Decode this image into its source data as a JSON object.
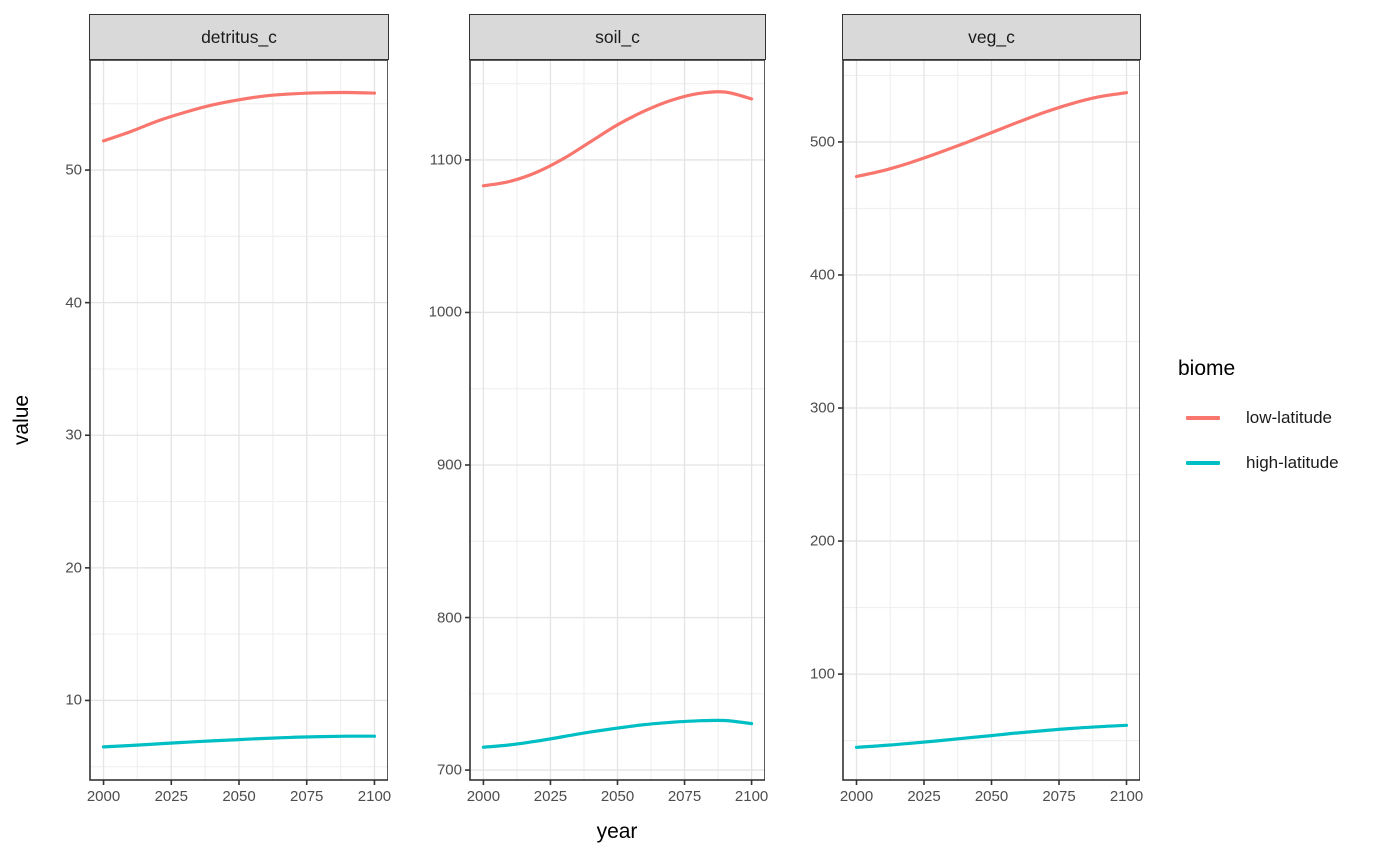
{
  "chart_data": {
    "type": "line",
    "xlabel": "year",
    "ylabel": "value",
    "x": [
      2000,
      2010,
      2020,
      2030,
      2040,
      2050,
      2060,
      2070,
      2080,
      2090,
      2100
    ],
    "x_domain": [
      1995,
      2105
    ],
    "x_major_ticks": [
      2000,
      2025,
      2050,
      2075,
      2100
    ],
    "x_minor_ticks": [
      2012.5,
      2037.5,
      2062.5,
      2087.5
    ],
    "grid": true,
    "legend": {
      "title": "biome",
      "position": "right",
      "entries": [
        {
          "label": "low-latitude",
          "color": "#F8766D"
        },
        {
          "label": "high-latitude",
          "color": "#00BFC4"
        }
      ]
    },
    "facets": [
      {
        "label": "detritus_c",
        "y_domain": [
          4.0,
          58.3
        ],
        "y_major_ticks": [
          10,
          20,
          30,
          40,
          50
        ],
        "y_minor_ticks": [
          5,
          15,
          25,
          35,
          45,
          55
        ],
        "series": [
          {
            "name": "low-latitude",
            "color": "#F8766D",
            "values": [
              52.2,
              52.9,
              53.7,
              54.35,
              54.9,
              55.3,
              55.6,
              55.75,
              55.83,
              55.85,
              55.8
            ]
          },
          {
            "name": "high-latitude",
            "color": "#00BFC4",
            "values": [
              6.5,
              6.6,
              6.72,
              6.84,
              6.95,
              7.05,
              7.14,
              7.22,
              7.27,
              7.3,
              7.3
            ]
          }
        ]
      },
      {
        "label": "soil_c",
        "y_domain": [
          693.5,
          1165.5
        ],
        "y_major_ticks": [
          700,
          800,
          900,
          1000,
          1100
        ],
        "y_minor_ticks": [
          750,
          850,
          950,
          1050,
          1150
        ],
        "series": [
          {
            "name": "low-latitude",
            "color": "#F8766D",
            "values": [
              1083,
              1086,
              1092,
              1101,
              1112,
              1123,
              1132,
              1139,
              1143.5,
              1144.5,
              1140
            ]
          },
          {
            "name": "high-latitude",
            "color": "#00BFC4",
            "values": [
              715,
              716.5,
              719,
              722,
              725,
              727.5,
              729.8,
              731.3,
              732.3,
              732.5,
              730.5
            ]
          }
        ]
      },
      {
        "label": "veg_c",
        "y_domain": [
          20.4,
          561.6
        ],
        "y_major_ticks": [
          100,
          200,
          300,
          400,
          500
        ],
        "y_minor_ticks": [
          50,
          150,
          250,
          350,
          450,
          550
        ],
        "series": [
          {
            "name": "low-latitude",
            "color": "#F8766D",
            "values": [
              474,
              478.5,
              484.5,
              491.5,
              499,
              507,
              515,
              522.5,
              529,
              534,
              537
            ]
          },
          {
            "name": "high-latitude",
            "color": "#00BFC4",
            "values": [
              45,
              46.3,
              48,
              49.8,
              51.8,
              53.8,
              55.8,
              57.6,
              59.2,
              60.5,
              61.5
            ]
          }
        ]
      }
    ],
    "theme": {
      "strip_background": "#D9D9D9",
      "panel_border": "#333333",
      "grid_major": "#E4E4E4",
      "grid_minor": "#F0F0F0",
      "axis_text": "#4D4D4D",
      "tick_mark": "#333333"
    }
  }
}
